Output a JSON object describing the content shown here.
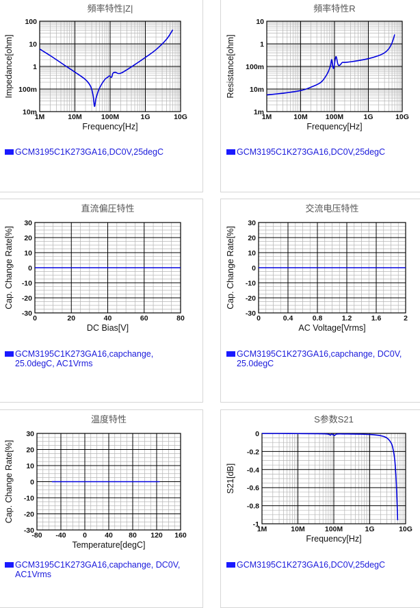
{
  "colors": {
    "series": "#0000dd",
    "legend_text": "#1a1adb",
    "grid_major": "#000000",
    "grid_minor": "#b4b4b4",
    "title": "#555555"
  },
  "chart_data": [
    {
      "id": "impedance",
      "type": "line",
      "title": "頻率特性|Z|",
      "xlabel": "Frequency[Hz]",
      "ylabel": "Impedance[ohm]",
      "xscale": "log",
      "yscale": "log",
      "xlim": [
        1000000,
        10000000000
      ],
      "ylim": [
        0.01,
        100
      ],
      "xticks": [
        {
          "v": 1000000,
          "label": "1M"
        },
        {
          "v": 10000000,
          "label": "10M"
        },
        {
          "v": 100000000,
          "label": "100M"
        },
        {
          "v": 1000000000,
          "label": "1G"
        },
        {
          "v": 10000000000,
          "label": "10G"
        }
      ],
      "yticks": [
        {
          "v": 0.01,
          "label": "10m"
        },
        {
          "v": 0.1,
          "label": "100m"
        },
        {
          "v": 1,
          "label": "1"
        },
        {
          "v": 10,
          "label": "10"
        },
        {
          "v": 100,
          "label": "100"
        }
      ],
      "grid": true,
      "legend": "GCM3195C1K273GA16,DC0V,25degC",
      "series": [
        {
          "x": [
            1000000,
            2000000,
            5000000,
            10000000,
            20000000,
            28000000,
            33000000,
            36000000,
            40000000,
            50000000,
            70000000,
            85000000,
            95000000,
            110000000,
            120000000,
            140000000,
            200000000,
            500000000,
            1000000000,
            2000000000,
            4000000000,
            6000000000
          ],
          "y": [
            5.9,
            3.0,
            1.15,
            0.56,
            0.26,
            0.13,
            0.05,
            0.017,
            0.04,
            0.11,
            0.26,
            0.33,
            0.38,
            0.33,
            0.5,
            0.55,
            0.5,
            1.2,
            2.5,
            5.5,
            16,
            42
          ]
        }
      ]
    },
    {
      "id": "resistance",
      "type": "line",
      "title": "頻率特性R",
      "xlabel": "Frequency[Hz]",
      "ylabel": "Resistance[ohm]",
      "xscale": "log",
      "yscale": "log",
      "xlim": [
        1000000,
        10000000000
      ],
      "ylim": [
        0.001,
        10
      ],
      "xticks": [
        {
          "v": 1000000,
          "label": "1M"
        },
        {
          "v": 10000000,
          "label": "10M"
        },
        {
          "v": 100000000,
          "label": "100M"
        },
        {
          "v": 1000000000,
          "label": "1G"
        },
        {
          "v": 10000000000,
          "label": "10G"
        }
      ],
      "yticks": [
        {
          "v": 0.001,
          "label": "1m"
        },
        {
          "v": 0.01,
          "label": "10m"
        },
        {
          "v": 0.1,
          "label": "100m"
        },
        {
          "v": 1,
          "label": "1"
        },
        {
          "v": 10,
          "label": "10"
        }
      ],
      "grid": true,
      "legend": "GCM3195C1K273GA16,DC0V,25degC",
      "series": [
        {
          "x": [
            1000000,
            3000000,
            10000000,
            20000000,
            40000000,
            60000000,
            75000000,
            82000000,
            88000000,
            95000000,
            110000000,
            125000000,
            135000000,
            150000000,
            170000000,
            200000000,
            300000000,
            500000000,
            1000000000,
            2000000000,
            3000000000,
            4000000000,
            5000000000,
            6000000000
          ],
          "y": [
            0.0055,
            0.0065,
            0.0085,
            0.012,
            0.02,
            0.045,
            0.1,
            0.2,
            0.11,
            0.085,
            0.27,
            0.13,
            0.11,
            0.12,
            0.15,
            0.15,
            0.16,
            0.18,
            0.22,
            0.3,
            0.4,
            0.6,
            1.1,
            2.6
          ]
        }
      ]
    },
    {
      "id": "dcbias",
      "type": "line",
      "title": "直流偏圧特性",
      "xlabel": "DC Bias[V]",
      "ylabel": "Cap. Change Rate[%]",
      "xlim": [
        0,
        80
      ],
      "ylim": [
        -30,
        30
      ],
      "xticks": [
        {
          "v": 0,
          "label": "0"
        },
        {
          "v": 20,
          "label": "20"
        },
        {
          "v": 40,
          "label": "40"
        },
        {
          "v": 60,
          "label": "60"
        },
        {
          "v": 80,
          "label": "80"
        }
      ],
      "yticks": [
        {
          "v": 30,
          "label": "30"
        },
        {
          "v": 20,
          "label": "20"
        },
        {
          "v": 10,
          "label": "10"
        },
        {
          "v": 0,
          "label": "0"
        },
        {
          "v": -10,
          "label": "-10"
        },
        {
          "v": -20,
          "label": "-20"
        },
        {
          "v": -30,
          "label": "-30"
        }
      ],
      "grid": true,
      "legend": "GCM3195C1K273GA16,capchange, 25.0degC, AC1Vrms",
      "series": [
        {
          "x": [
            0,
            80
          ],
          "y": [
            0,
            0
          ]
        }
      ]
    },
    {
      "id": "acvoltage",
      "type": "line",
      "title": "交流电压特性",
      "xlabel": "AC Voltage[Vrms]",
      "ylabel": "Cap. Change Rate[%]",
      "xlim": [
        0,
        2
      ],
      "ylim": [
        -30,
        30
      ],
      "xticks": [
        {
          "v": 0,
          "label": "0"
        },
        {
          "v": 0.4,
          "label": "0.4"
        },
        {
          "v": 0.8,
          "label": "0.8"
        },
        {
          "v": 1.2,
          "label": "1.2"
        },
        {
          "v": 1.6,
          "label": "1.6"
        },
        {
          "v": 2,
          "label": "2"
        }
      ],
      "yticks": [
        {
          "v": 30,
          "label": "30"
        },
        {
          "v": 20,
          "label": "20"
        },
        {
          "v": 10,
          "label": "10"
        },
        {
          "v": 0,
          "label": "0"
        },
        {
          "v": -10,
          "label": "-10"
        },
        {
          "v": -20,
          "label": "-20"
        },
        {
          "v": -30,
          "label": "-30"
        }
      ],
      "grid": true,
      "legend": "GCM3195C1K273GA16,capchange, DC0V, 25.0degC",
      "series": [
        {
          "x": [
            0,
            2
          ],
          "y": [
            0,
            0
          ]
        }
      ]
    },
    {
      "id": "temperature",
      "type": "line",
      "title": "温度特性",
      "xlabel": "Temperature[degC]",
      "ylabel": "Cap. Change Rate[%]",
      "xlim": [
        -80,
        160
      ],
      "ylim": [
        -30,
        30
      ],
      "xticks": [
        {
          "v": -80,
          "label": "-80"
        },
        {
          "v": -40,
          "label": "-40"
        },
        {
          "v": 0,
          "label": "0"
        },
        {
          "v": 40,
          "label": "40"
        },
        {
          "v": 80,
          "label": "80"
        },
        {
          "v": 120,
          "label": "120"
        },
        {
          "v": 160,
          "label": "160"
        }
      ],
      "yticks": [
        {
          "v": 30,
          "label": "30"
        },
        {
          "v": 20,
          "label": "20"
        },
        {
          "v": 10,
          "label": "10"
        },
        {
          "v": 0,
          "label": "0"
        },
        {
          "v": -10,
          "label": "-10"
        },
        {
          "v": -20,
          "label": "-20"
        },
        {
          "v": -30,
          "label": "-30"
        }
      ],
      "grid": true,
      "legend": "GCM3195C1K273GA16,capchange, DC0V, AC1Vrms",
      "series": [
        {
          "x": [
            -55,
            125
          ],
          "y": [
            0,
            0
          ]
        }
      ]
    },
    {
      "id": "s21",
      "type": "line",
      "title": "S参数S21",
      "xlabel": "Frequency[Hz]",
      "ylabel": "S21[dB]",
      "xscale": "log",
      "xlim": [
        1000000,
        10000000000
      ],
      "ylim": [
        -1,
        0
      ],
      "xticks": [
        {
          "v": 1000000,
          "label": "1M"
        },
        {
          "v": 10000000,
          "label": "10M"
        },
        {
          "v": 100000000,
          "label": "100M"
        },
        {
          "v": 1000000000,
          "label": "1G"
        },
        {
          "v": 10000000000,
          "label": "10G"
        }
      ],
      "yticks": [
        {
          "v": 0,
          "label": "0"
        },
        {
          "v": -0.2,
          "label": "-0.2"
        },
        {
          "v": -0.4,
          "label": "-0.4"
        },
        {
          "v": -0.6,
          "label": "-0.6"
        },
        {
          "v": -0.8,
          "label": "-0.8"
        },
        {
          "v": -1,
          "label": "-1"
        }
      ],
      "grid": true,
      "legend": "GCM3195C1K273GA16,DC0V,25degC",
      "series": [
        {
          "x": [
            1000000,
            3000000,
            10000000,
            30000000,
            60000000,
            75000000,
            80000000,
            88000000,
            95000000,
            105000000,
            115000000,
            130000000,
            200000000,
            500000000,
            1000000000,
            2000000000,
            3000000000,
            4000000000,
            4500000000,
            5000000000,
            5500000000,
            6000000000
          ],
          "y": [
            -0.001,
            -0.001,
            -0.002,
            -0.003,
            -0.005,
            -0.012,
            -0.02,
            -0.006,
            -0.015,
            -0.022,
            -0.01,
            -0.006,
            -0.006,
            -0.008,
            -0.012,
            -0.025,
            -0.05,
            -0.11,
            -0.18,
            -0.3,
            -0.55,
            -0.96
          ]
        }
      ]
    }
  ]
}
